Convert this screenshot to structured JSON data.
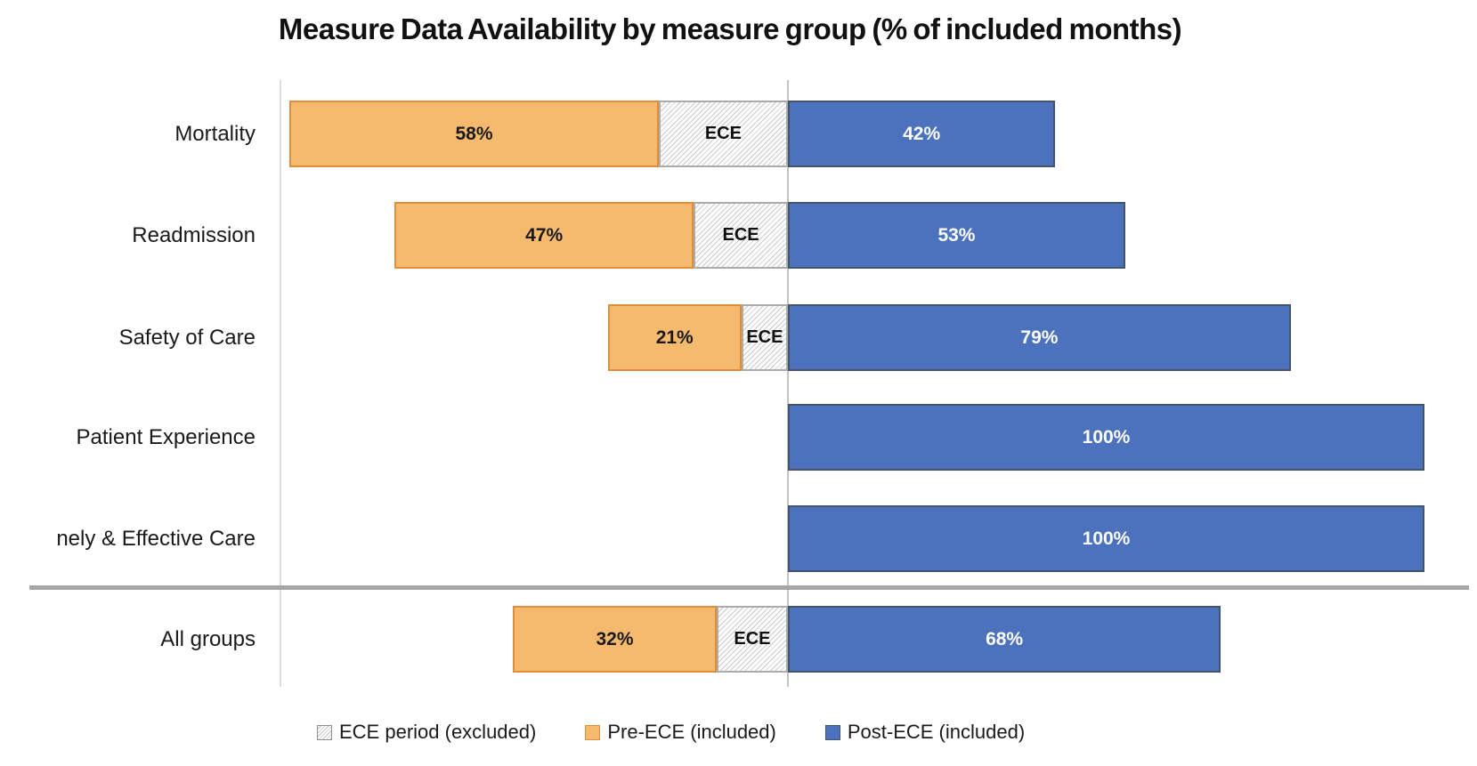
{
  "chart_data": {
    "type": "bar",
    "orientation": "horizontal",
    "stacked": true,
    "title": "Measure Data Availability by measure group (% of included months)",
    "unit": "percent of included months",
    "layout_hints": {
      "post_bars_start_at_zero_axis": true,
      "pre_and_ece_segments_extend_left_of_axis": true,
      "grid": "two light vertical lines; thick gray horizontal divider separates All groups row",
      "legend_position": "bottom"
    },
    "categories": [
      "Mortality",
      "Readmission",
      "Safety of Care",
      "Patient Experience",
      "nely & Effective Care",
      "All groups"
    ],
    "rows": [
      {
        "category": "Mortality",
        "pre_pct": 58,
        "pre_label": "58%",
        "ece_label": "ECE",
        "ece_span_pct_est": 20.3,
        "post_pct": 42,
        "post_label": "42%"
      },
      {
        "category": "Readmission",
        "pre_pct": 47,
        "pre_label": "47%",
        "ece_label": "ECE",
        "ece_span_pct_est": 14.8,
        "post_pct": 53,
        "post_label": "53%"
      },
      {
        "category": "Safety of Care",
        "pre_pct": 21,
        "pre_label": "21%",
        "ece_label": "ECE",
        "ece_span_pct_est": 7.3,
        "post_pct": 79,
        "post_label": "79%"
      },
      {
        "category": "Patient Experience",
        "pre_pct": null,
        "pre_label": null,
        "ece_label": null,
        "ece_span_pct_est": 0,
        "post_pct": 100,
        "post_label": "100%"
      },
      {
        "category": "nely & Effective Care",
        "pre_pct": null,
        "pre_label": null,
        "ece_label": null,
        "ece_span_pct_est": 0,
        "post_pct": 100,
        "post_label": "100%"
      },
      {
        "category": "All groups",
        "pre_pct": 32,
        "pre_label": "32%",
        "ece_label": "ECE",
        "ece_span_pct_est": 11.2,
        "post_pct": 68,
        "post_label": "68%"
      }
    ],
    "legend": [
      {
        "label": "ECE period (excluded)",
        "swatch": "hatch"
      },
      {
        "label": "Pre-ECE (included)",
        "swatch": "orange"
      },
      {
        "label": "Post-ECE (included)",
        "swatch": "blue"
      }
    ],
    "colors": {
      "pre_fill": "#F5BA6E",
      "pre_border": "#DE8F3E",
      "post_fill": "#4C72BE",
      "post_border": "#44546A",
      "hatch_line": "#C9C9C9",
      "hatch_border": "#ABABAB",
      "gridline": "#DCDCDC",
      "axis_line": "#C4C4C4",
      "divider": "#A6A6A6",
      "label_dark": "#1A1A1A",
      "label_light": "#FFFFFF"
    }
  }
}
